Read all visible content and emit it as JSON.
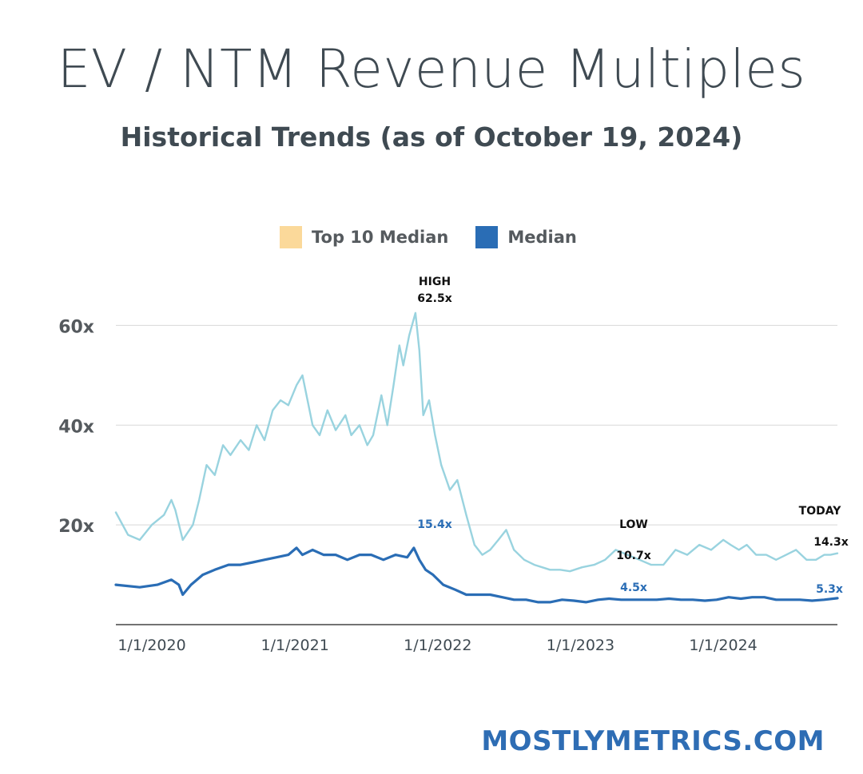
{
  "header": {
    "title": "EV / NTM Revenue Multiples",
    "subtitle": "Historical Trends (as of October 19, 2024)"
  },
  "footer": {
    "site": "MOSTLYMETRICS.COM"
  },
  "colors": {
    "top10": "#99d3df",
    "median": "#2a6db5",
    "top10_legend": "#fbd99a",
    "grid": "#d8d8d8",
    "text": "#3f4a52"
  },
  "chart_data": {
    "type": "line",
    "title": "",
    "xlabel": "",
    "ylabel": "",
    "ylim": [
      0,
      70
    ],
    "y_ticks": [
      20,
      40,
      60
    ],
    "y_tick_labels": [
      "20x",
      "40x",
      "60x"
    ],
    "x_ticks": [
      "2020-01-01",
      "2021-01-01",
      "2022-01-01",
      "2023-01-01",
      "2024-01-01"
    ],
    "x_tick_labels": [
      "1/1/2020",
      "1/1/2021",
      "1/1/2022",
      "1/1/2023",
      "1/1/2024"
    ],
    "x_range": [
      "2019-10-01",
      "2024-10-19"
    ],
    "grid": true,
    "legend": "top",
    "series": [
      {
        "name": "Top 10 Median",
        "x": [
          "2019-10-01",
          "2019-11-01",
          "2019-12-01",
          "2020-01-01",
          "2020-02-01",
          "2020-02-20",
          "2020-03-01",
          "2020-03-20",
          "2020-04-15",
          "2020-05-01",
          "2020-05-20",
          "2020-06-10",
          "2020-07-01",
          "2020-07-20",
          "2020-08-15",
          "2020-09-05",
          "2020-09-25",
          "2020-10-15",
          "2020-11-05",
          "2020-11-25",
          "2020-12-15",
          "2021-01-05",
          "2021-01-20",
          "2021-02-15",
          "2021-03-05",
          "2021-03-25",
          "2021-04-15",
          "2021-05-10",
          "2021-05-25",
          "2021-06-15",
          "2021-07-05",
          "2021-07-20",
          "2021-08-10",
          "2021-08-25",
          "2021-09-10",
          "2021-09-25",
          "2021-10-05",
          "2021-10-20",
          "2021-11-05",
          "2021-11-15",
          "2021-11-25",
          "2021-12-10",
          "2021-12-25",
          "2022-01-10",
          "2022-02-01",
          "2022-02-20",
          "2022-03-15",
          "2022-04-05",
          "2022-04-25",
          "2022-05-15",
          "2022-06-05",
          "2022-06-25",
          "2022-07-15",
          "2022-08-10",
          "2022-09-05",
          "2022-09-25",
          "2022-10-15",
          "2022-11-10",
          "2022-12-05",
          "2023-01-05",
          "2023-02-05",
          "2023-03-05",
          "2023-04-01",
          "2023-05-01",
          "2023-06-01",
          "2023-07-01",
          "2023-08-01",
          "2023-09-01",
          "2023-10-01",
          "2023-11-01",
          "2023-12-01",
          "2024-01-01",
          "2024-01-20",
          "2024-02-10",
          "2024-03-01",
          "2024-03-25",
          "2024-04-20",
          "2024-05-15",
          "2024-06-10",
          "2024-07-05",
          "2024-08-01",
          "2024-08-25",
          "2024-09-15",
          "2024-10-01",
          "2024-10-19"
        ],
        "values": [
          22.5,
          18,
          17,
          20,
          22,
          25,
          23,
          17,
          20,
          25,
          32,
          30,
          36,
          34,
          37,
          35,
          40,
          37,
          43,
          45,
          44,
          48,
          50,
          40,
          38,
          43,
          39,
          42,
          38,
          40,
          36,
          38,
          46,
          40,
          48,
          56,
          52,
          58,
          62.5,
          55,
          42,
          45,
          38,
          32,
          27,
          29,
          22,
          16,
          14,
          15,
          17,
          19,
          15,
          13,
          12,
          11.5,
          11,
          11,
          10.7,
          11.5,
          12,
          13,
          15,
          14,
          13,
          12,
          12,
          15,
          14,
          16,
          15,
          17,
          16,
          15,
          16,
          14,
          14,
          13,
          14,
          15,
          13,
          13,
          14,
          14,
          14.3
        ]
      },
      {
        "name": "Median",
        "x": [
          "2019-10-01",
          "2019-12-01",
          "2020-01-15",
          "2020-02-20",
          "2020-03-10",
          "2020-03-20",
          "2020-04-10",
          "2020-05-10",
          "2020-06-10",
          "2020-07-15",
          "2020-08-15",
          "2020-09-15",
          "2020-10-15",
          "2020-11-15",
          "2020-12-15",
          "2021-01-05",
          "2021-01-20",
          "2021-02-15",
          "2021-03-15",
          "2021-04-15",
          "2021-05-15",
          "2021-06-15",
          "2021-07-15",
          "2021-08-15",
          "2021-09-15",
          "2021-10-15",
          "2021-11-01",
          "2021-11-15",
          "2021-12-01",
          "2021-12-20",
          "2022-01-15",
          "2022-02-15",
          "2022-03-15",
          "2022-04-15",
          "2022-05-15",
          "2022-06-15",
          "2022-07-15",
          "2022-08-15",
          "2022-09-15",
          "2022-10-15",
          "2022-11-15",
          "2022-12-15",
          "2023-01-15",
          "2023-02-15",
          "2023-03-15",
          "2023-04-15",
          "2023-05-15",
          "2023-06-15",
          "2023-07-15",
          "2023-08-15",
          "2023-09-15",
          "2023-10-15",
          "2023-11-15",
          "2023-12-15",
          "2024-01-15",
          "2024-02-15",
          "2024-03-15",
          "2024-04-15",
          "2024-05-15",
          "2024-06-15",
          "2024-07-15",
          "2024-08-15",
          "2024-09-15",
          "2024-10-19"
        ],
        "values": [
          8,
          7.5,
          8,
          9,
          8,
          6,
          8,
          10,
          11,
          12,
          12,
          12.5,
          13,
          13.5,
          14,
          15.4,
          14,
          15,
          14,
          14,
          13,
          14,
          14,
          13,
          14,
          13.5,
          15.4,
          13,
          11,
          10,
          8,
          7,
          6,
          6,
          6,
          5.5,
          5,
          5,
          4.5,
          4.5,
          5,
          4.8,
          4.5,
          5,
          5.2,
          5,
          5,
          5,
          5,
          5.2,
          5,
          5,
          4.8,
          5,
          5.5,
          5.2,
          5.5,
          5.5,
          5,
          5,
          5,
          4.8,
          5,
          5.3
        ]
      }
    ],
    "annotations": [
      {
        "label": "HIGH",
        "value_label": "62.5x",
        "series": "Top 10 Median"
      },
      {
        "value_label": "15.4x",
        "series": "Median"
      },
      {
        "label": "LOW",
        "value_label": "10.7x",
        "series": "Top 10 Median"
      },
      {
        "value_label": "4.5x",
        "series": "Median"
      },
      {
        "label": "TODAY",
        "value_label": "14.3x",
        "series": "Top 10 Median"
      },
      {
        "value_label": "5.3x",
        "series": "Median"
      }
    ]
  }
}
